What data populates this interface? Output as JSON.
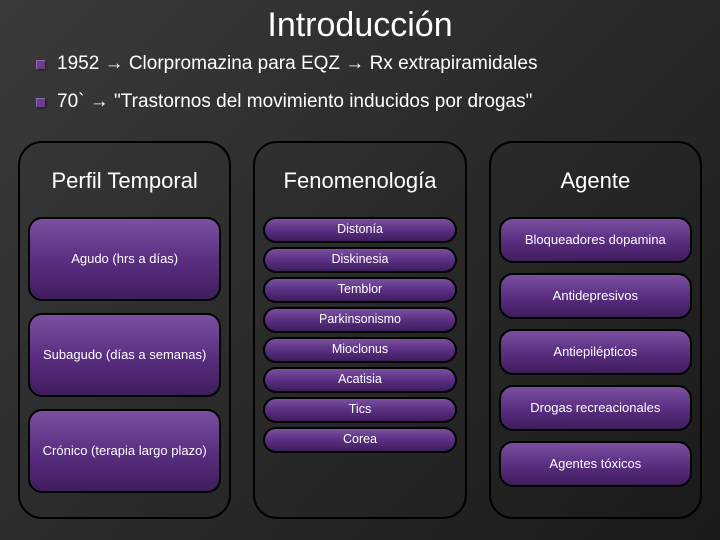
{
  "title": "Introducción",
  "bullets": [
    "1952 → Clorpromazina para EQZ → Rx extrapiramidales",
    "70` → \"Trastornos del movimiento inducidos por drogas\""
  ],
  "columns": {
    "temporal": {
      "header": "Perfil Temporal",
      "items": [
        "Agudo (hrs a días)",
        "Subagudo (días a semanas)",
        "Crónico (terapia largo plazo)"
      ]
    },
    "feno": {
      "header": "Fenomenología",
      "items": [
        "Distonía",
        "Diskinesia",
        "Temblor",
        "Parkinsonismo",
        "Mioclonus",
        "Acatisia",
        "Tics",
        "Corea"
      ]
    },
    "agente": {
      "header": "Agente",
      "items": [
        "Bloqueadores dopamina",
        "Antidepresivos",
        "Antiepilépticos",
        "Drogas recreacionales",
        "Agentes tóxicos"
      ]
    }
  },
  "colors": {
    "accent": "#6b3d8e",
    "item_gradient_top": "#7a509e",
    "item_gradient_mid": "#5b2f83",
    "item_gradient_bot": "#3e1d5c",
    "text": "#ffffff",
    "border": "#000000"
  }
}
